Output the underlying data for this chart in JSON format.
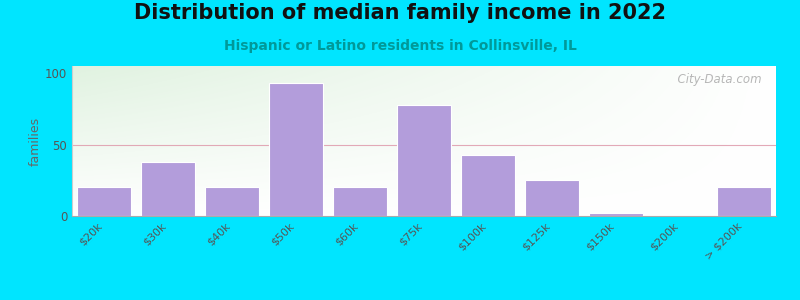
{
  "title": "Distribution of median family income in 2022",
  "subtitle": "Hispanic or Latino residents in Collinsville, IL",
  "ylabel": "families",
  "categories": [
    "$20k",
    "$30k",
    "$40k",
    "$50k",
    "$60k",
    "$75k",
    "$100k",
    "$125k",
    "$150k",
    "$200k",
    "> $200k"
  ],
  "values": [
    20,
    38,
    20,
    93,
    20,
    78,
    43,
    25,
    2,
    0,
    20
  ],
  "bar_color": "#b39ddb",
  "bar_edge_color": "#ffffff",
  "bg_outer": "#00e5ff",
  "yticks": [
    0,
    50,
    100
  ],
  "ylim": [
    0,
    105
  ],
  "watermark": "  City-Data.com",
  "title_fontsize": 15,
  "subtitle_fontsize": 10,
  "ylabel_fontsize": 9,
  "tick_color": "#555555",
  "subtitle_color": "#009999",
  "title_color": "#111111"
}
